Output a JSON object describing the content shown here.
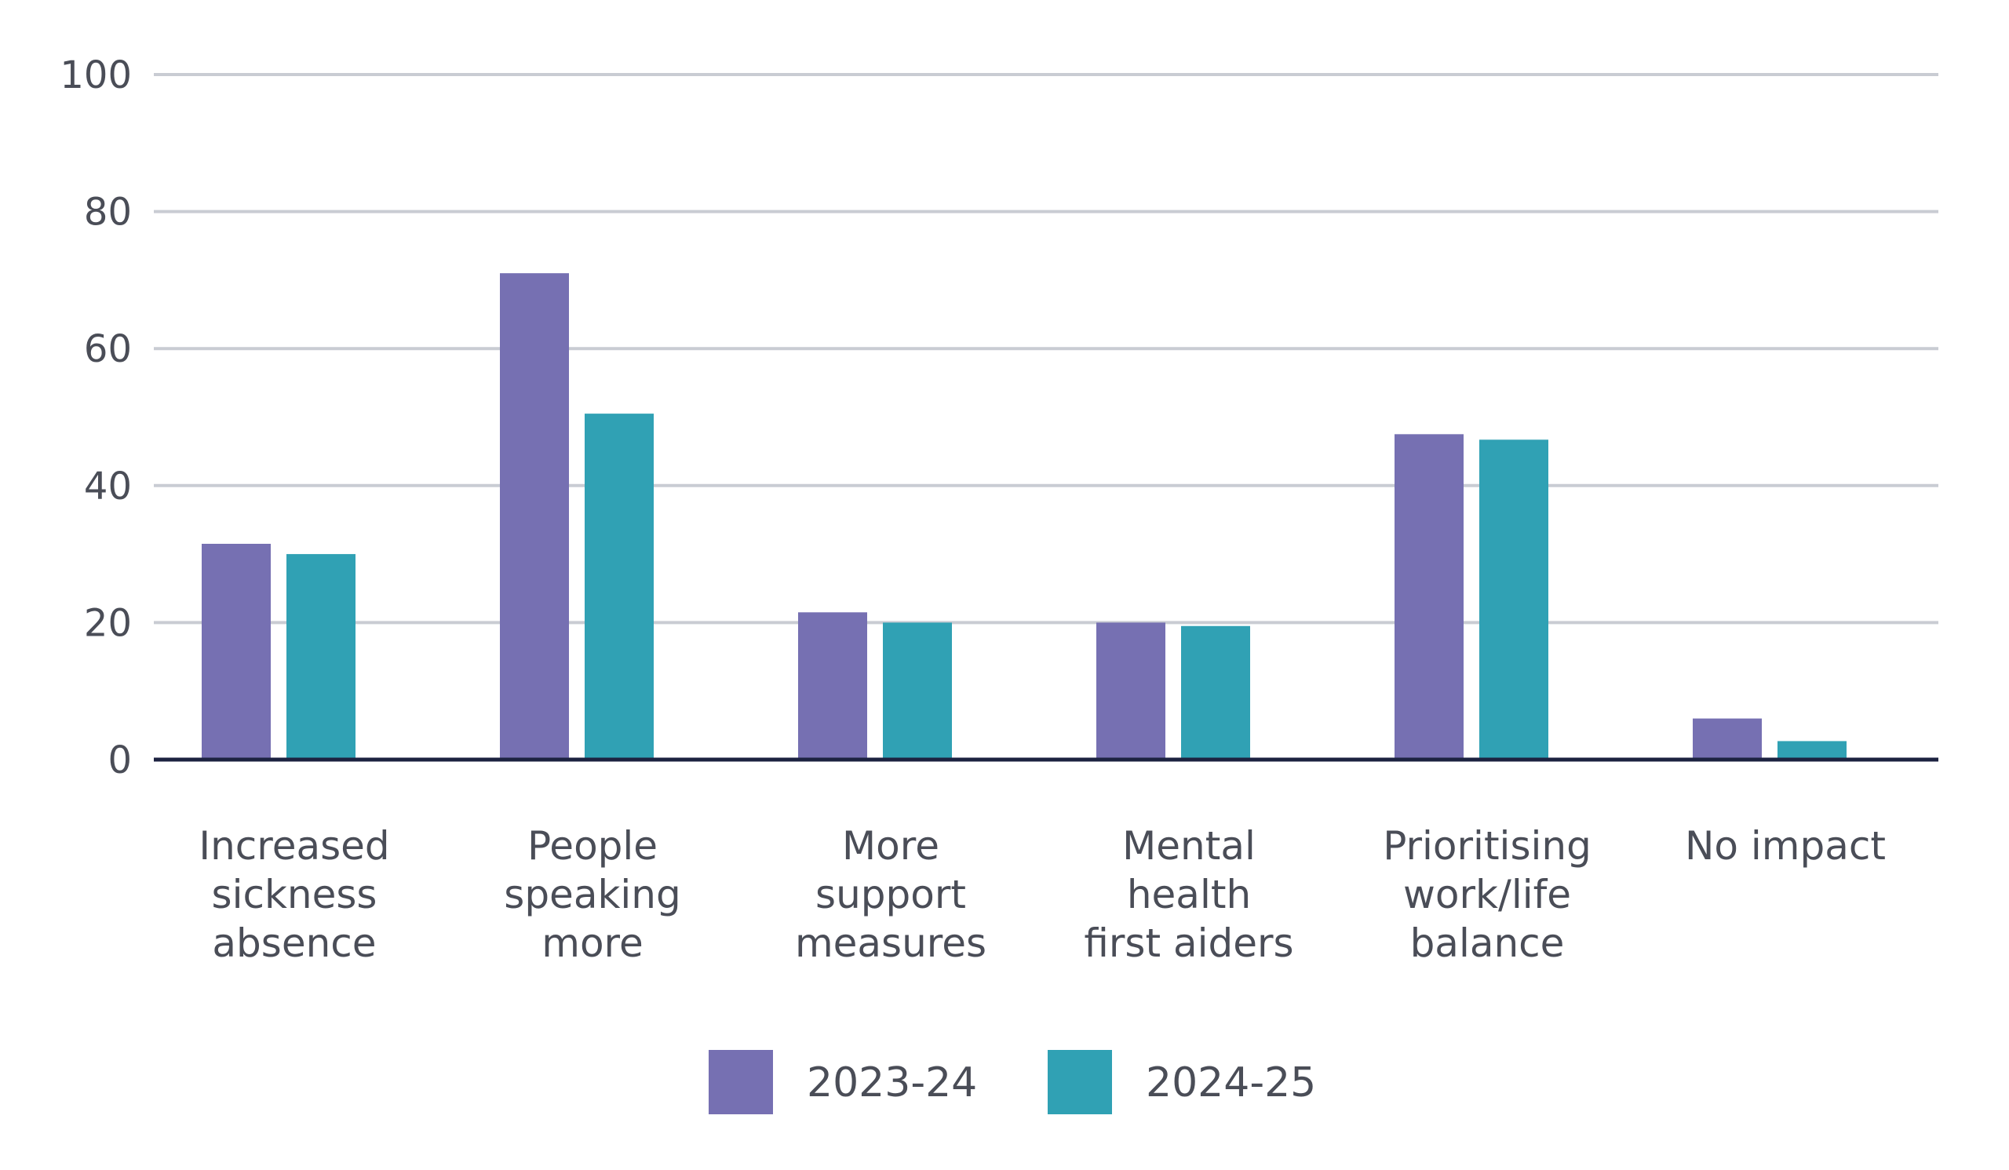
{
  "chart_data": {
    "type": "bar",
    "title": "",
    "xlabel": "",
    "ylabel": "",
    "ylim": [
      0,
      100
    ],
    "yticks": [
      0,
      20,
      40,
      60,
      80,
      100
    ],
    "grid": true,
    "legend_position": "bottom-center",
    "categories": [
      [
        "Increased",
        "sickness",
        "absence"
      ],
      [
        "People",
        "speaking",
        "more"
      ],
      [
        "More",
        "support",
        "measures"
      ],
      [
        "Mental",
        "health",
        "first aiders"
      ],
      [
        "Prioritising",
        "work/life",
        "balance"
      ],
      [
        "No impact"
      ]
    ],
    "series": [
      {
        "name": "2023-24",
        "color": "#7670b2",
        "values": [
          31.5,
          71,
          21.5,
          20,
          47.5,
          6
        ]
      },
      {
        "name": "2024-25",
        "color": "#30a1b4",
        "values": [
          30,
          50.5,
          20,
          19.5,
          46.7,
          2.7
        ]
      }
    ],
    "colors": {
      "grid": "#c9ccd3",
      "axis": "#1c2240",
      "text": "#4a4d57"
    }
  }
}
